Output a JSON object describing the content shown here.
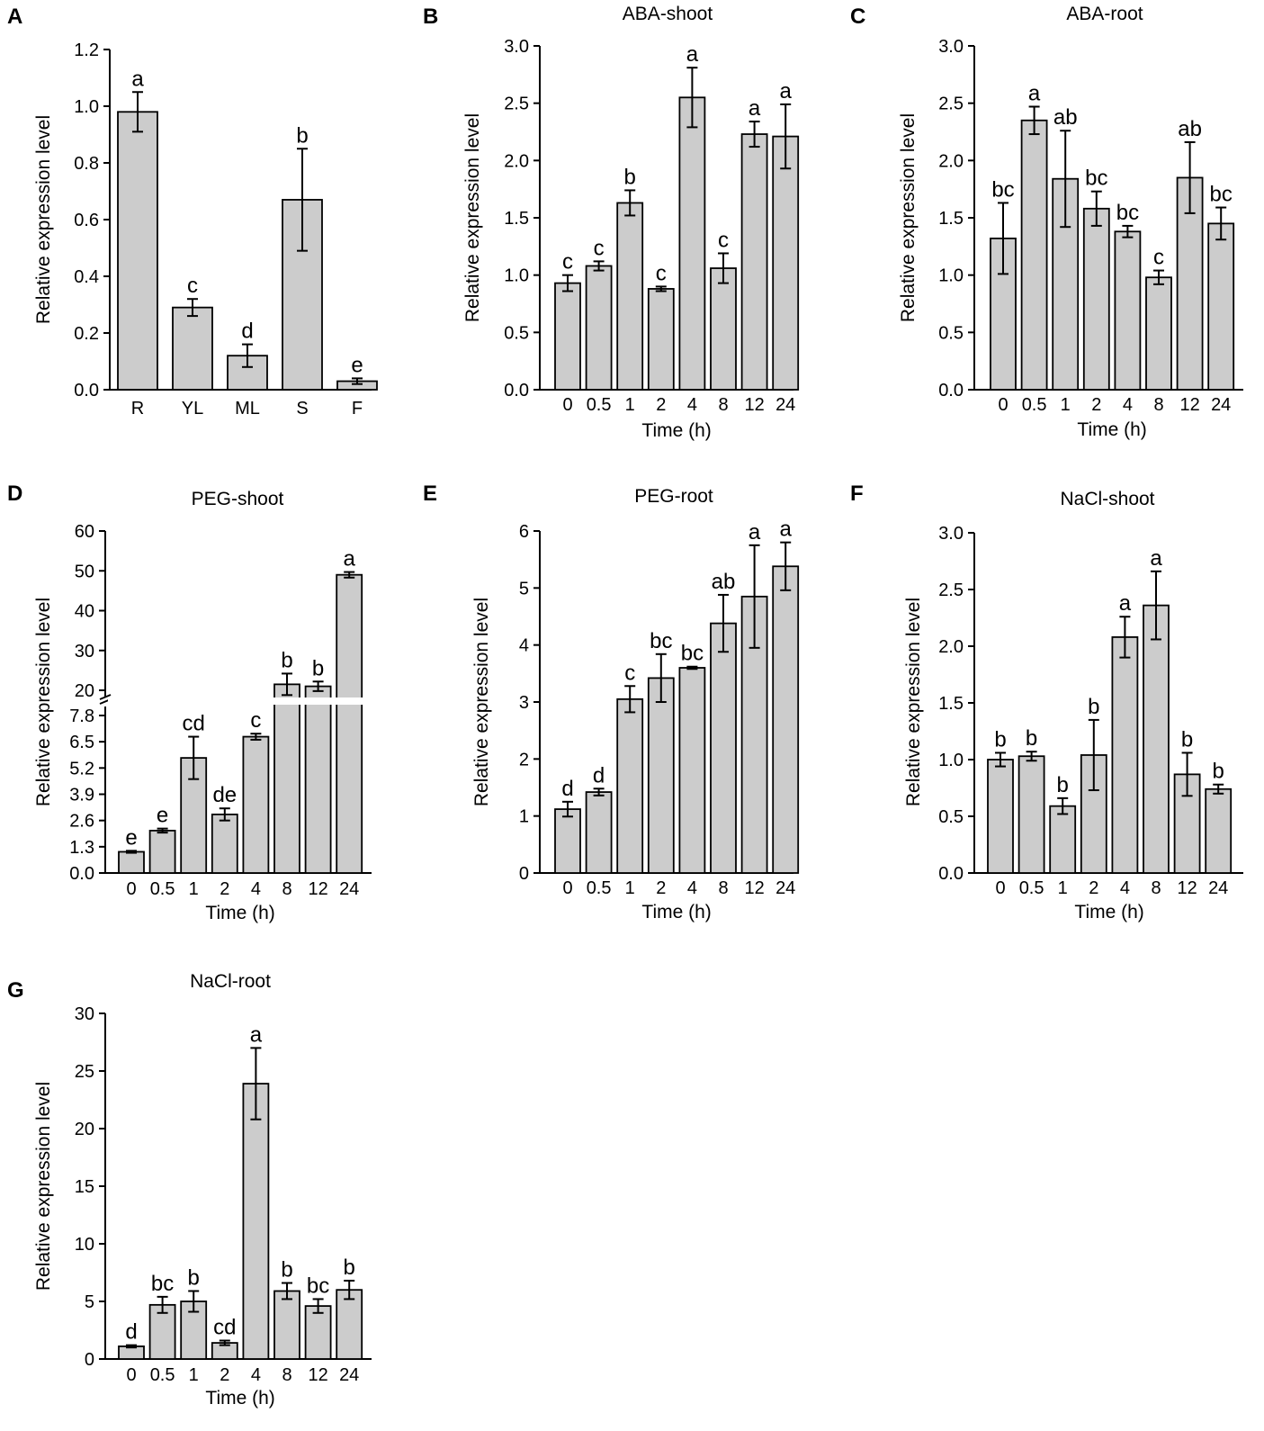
{
  "chart_data": [
    {
      "type": "bar",
      "panel_label": "A",
      "title": "",
      "xlabel": "",
      "ylabel": "Relative expression level",
      "ylim": [
        0,
        1.2
      ],
      "yticks": [
        0.0,
        0.2,
        0.4,
        0.6,
        0.8,
        1.0,
        1.2
      ],
      "ytick_labels": [
        "0.0",
        "0.2",
        "0.4",
        "0.6",
        "0.8",
        "1.0",
        "1.2"
      ],
      "categories": [
        "R",
        "YL",
        "ML",
        "S",
        "F"
      ],
      "values": [
        0.98,
        0.29,
        0.12,
        0.67,
        0.03
      ],
      "errors": [
        0.07,
        0.03,
        0.04,
        0.18,
        0.01
      ],
      "letters": [
        "a",
        "c",
        "d",
        "b",
        "e"
      ]
    },
    {
      "type": "bar",
      "panel_label": "B",
      "title": "ABA-shoot",
      "xlabel": "Time (h)",
      "ylabel": "Relative expression level",
      "ylim": [
        0,
        3.0
      ],
      "yticks": [
        0.0,
        0.5,
        1.0,
        1.5,
        2.0,
        2.5,
        3.0
      ],
      "ytick_labels": [
        "0.0",
        "0.5",
        "1.0",
        "1.5",
        "2.0",
        "2.5",
        "3.0"
      ],
      "categories": [
        "0",
        "0.5",
        "1",
        "2",
        "4",
        "8",
        "12",
        "24"
      ],
      "values": [
        0.93,
        1.08,
        1.63,
        0.88,
        2.55,
        1.06,
        2.23,
        2.21
      ],
      "errors": [
        0.07,
        0.04,
        0.11,
        0.02,
        0.26,
        0.13,
        0.11,
        0.28
      ],
      "letters": [
        "c",
        "c",
        "b",
        "c",
        "a",
        "c",
        "a",
        "a"
      ]
    },
    {
      "type": "bar",
      "panel_label": "C",
      "title": "ABA-root",
      "xlabel": "Time (h)",
      "ylabel": "Relative expression level",
      "ylim": [
        0,
        3.0
      ],
      "yticks": [
        0.0,
        0.5,
        1.0,
        1.5,
        2.0,
        2.5,
        3.0
      ],
      "ytick_labels": [
        "0.0",
        "0.5",
        "1.0",
        "1.5",
        "2.0",
        "2.5",
        "3.0"
      ],
      "categories": [
        "0",
        "0.5",
        "1",
        "2",
        "4",
        "8",
        "12",
        "24"
      ],
      "values": [
        1.32,
        2.35,
        1.84,
        1.58,
        1.38,
        0.98,
        1.85,
        1.45
      ],
      "errors": [
        0.31,
        0.12,
        0.42,
        0.15,
        0.05,
        0.06,
        0.31,
        0.14
      ],
      "letters": [
        "bc",
        "a",
        "ab",
        "bc",
        "bc",
        "c",
        "ab",
        "bc"
      ]
    },
    {
      "type": "bar",
      "panel_label": "D",
      "title": "PEG-shoot",
      "xlabel": "Time (h)",
      "ylabel": "Relative expression level",
      "axis_break": {
        "lower_ylim": [
          0,
          7.8
        ],
        "upper_ylim": [
          20,
          60
        ]
      },
      "ylim": [
        0,
        60
      ],
      "yticks": [
        0.0,
        1.3,
        2.6,
        3.9,
        5.2,
        6.5,
        7.8,
        20,
        30,
        40,
        50,
        60
      ],
      "ytick_labels": [
        "0.0",
        "1.3",
        "2.6",
        "3.9",
        "5.2",
        "6.5",
        "7.8",
        "20",
        "30",
        "40",
        "50",
        "60"
      ],
      "categories": [
        "0",
        "0.5",
        "1",
        "2",
        "4",
        "8",
        "12",
        "24"
      ],
      "values": [
        1.05,
        2.1,
        5.7,
        2.9,
        6.75,
        21.5,
        21.0,
        49.0
      ],
      "errors": [
        0.05,
        0.1,
        1.05,
        0.3,
        0.15,
        2.7,
        1.2,
        0.7
      ],
      "letters": [
        "e",
        "e",
        "cd",
        "de",
        "c",
        "b",
        "b",
        "a"
      ]
    },
    {
      "type": "bar",
      "panel_label": "E",
      "title": "PEG-root",
      "xlabel": "Time (h)",
      "ylabel": "Relative expression level",
      "ylim": [
        0,
        6
      ],
      "yticks": [
        0,
        1,
        2,
        3,
        4,
        5,
        6
      ],
      "ytick_labels": [
        "0",
        "1",
        "2",
        "3",
        "4",
        "5",
        "6"
      ],
      "categories": [
        "0",
        "0.5",
        "1",
        "2",
        "4",
        "8",
        "12",
        "24"
      ],
      "values": [
        1.12,
        1.42,
        3.05,
        3.42,
        3.6,
        4.38,
        4.85,
        5.38
      ],
      "errors": [
        0.13,
        0.06,
        0.23,
        0.42,
        0.02,
        0.5,
        0.9,
        0.42
      ],
      "letters": [
        "d",
        "d",
        "c",
        "bc",
        "bc",
        "ab",
        "a",
        "a"
      ]
    },
    {
      "type": "bar",
      "panel_label": "F",
      "title": "NaCl-shoot",
      "xlabel": "Time (h)",
      "ylabel": "Relative expression level",
      "ylim": [
        0,
        3.0
      ],
      "yticks": [
        0.0,
        0.5,
        1.0,
        1.5,
        2.0,
        2.5,
        3.0
      ],
      "ytick_labels": [
        "0.0",
        "0.5",
        "1.0",
        "1.5",
        "2.0",
        "2.5",
        "3.0"
      ],
      "categories": [
        "0",
        "0.5",
        "1",
        "2",
        "4",
        "8",
        "12",
        "24"
      ],
      "values": [
        1.0,
        1.03,
        0.59,
        1.04,
        2.08,
        2.36,
        0.87,
        0.74
      ],
      "errors": [
        0.06,
        0.04,
        0.07,
        0.31,
        0.18,
        0.3,
        0.19,
        0.04
      ],
      "letters": [
        "b",
        "b",
        "b",
        "b",
        "a",
        "a",
        "b",
        "b"
      ]
    },
    {
      "type": "bar",
      "panel_label": "G",
      "title": "NaCl-root",
      "xlabel": "Time (h)",
      "ylabel": "Relative expression level",
      "ylim": [
        0,
        30
      ],
      "yticks": [
        0,
        5,
        10,
        15,
        20,
        25,
        30
      ],
      "ytick_labels": [
        "0",
        "5",
        "10",
        "15",
        "20",
        "25",
        "30"
      ],
      "categories": [
        "0",
        "0.5",
        "1",
        "2",
        "4",
        "8",
        "12",
        "24"
      ],
      "values": [
        1.1,
        4.7,
        5.0,
        1.4,
        23.9,
        5.9,
        4.6,
        6.0
      ],
      "errors": [
        0.1,
        0.7,
        0.9,
        0.2,
        3.1,
        0.7,
        0.6,
        0.8
      ],
      "letters": [
        "d",
        "bc",
        "b",
        "cd",
        "a",
        "b",
        "bc",
        "b"
      ]
    }
  ]
}
